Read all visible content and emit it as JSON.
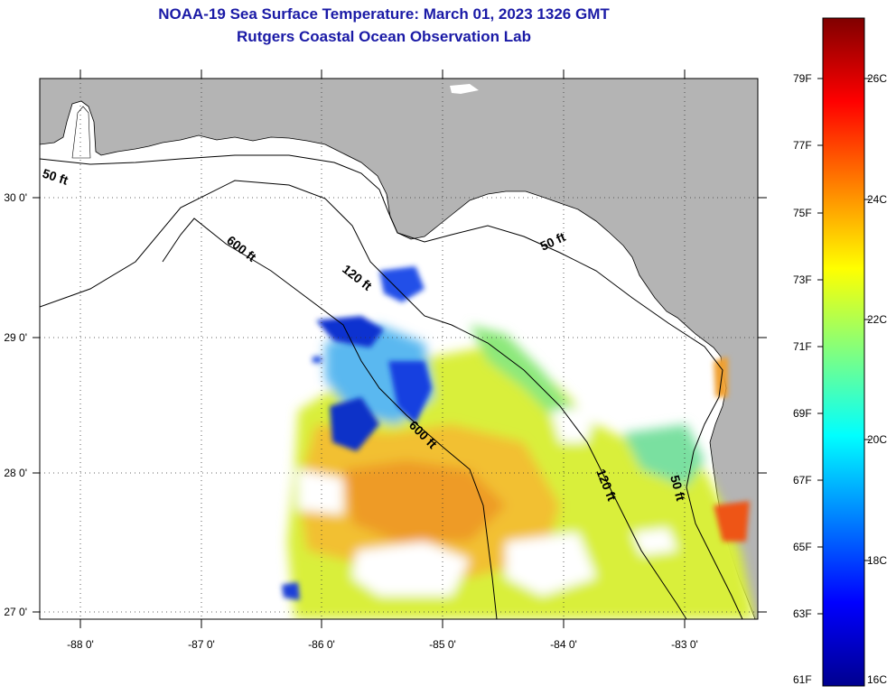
{
  "header": {
    "title_line1": "NOAA-19 Sea Surface Temperature:  March 01, 2023 1326 GMT",
    "title_line2": "Rutgers Coastal Ocean Observation Lab"
  },
  "map": {
    "longitude_labels": [
      "-88 0'",
      "-87 0'",
      "-86 0'",
      "-85 0'",
      "-84 0'",
      "-83 0'"
    ],
    "latitude_labels": [
      "30 0'",
      "29 0'",
      "28 0'",
      "27 0'"
    ],
    "contour_labels": {
      "west_50ft": "50 ft",
      "west_600ft": "600 ft",
      "central_120ft": "120 ft",
      "central_600ft": "600 ft",
      "east_50ft_north": "50 ft",
      "east_120ft": "120 ft",
      "east_50ft_south": "50 ft"
    },
    "colors": {
      "land": "#b4b4b4",
      "no_data": "#ffffff",
      "coast": "#000000"
    }
  },
  "colorbar": {
    "fahrenheit_labels": [
      "79F",
      "77F",
      "75F",
      "73F",
      "71F",
      "69F",
      "67F",
      "65F",
      "63F",
      "61F"
    ],
    "celsius_labels": [
      "26C",
      "24C",
      "22C",
      "20C",
      "18C",
      "16C"
    ],
    "colormap": [
      "#00008f",
      "#0000ff",
      "#0080ff",
      "#00ffff",
      "#80ff80",
      "#ffff00",
      "#ff8000",
      "#ff0000",
      "#800000"
    ]
  }
}
